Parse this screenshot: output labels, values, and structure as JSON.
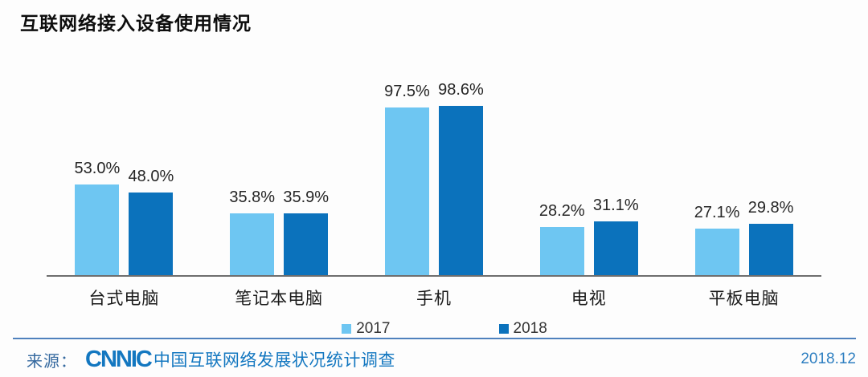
{
  "title": "互联网络接入设备使用情况",
  "chart_data": {
    "type": "bar",
    "title": "互联网络接入设备使用情况",
    "categories": [
      "台式电脑",
      "笔记本电脑",
      "手机",
      "电视",
      "平板电脑"
    ],
    "series": [
      {
        "name": "2017",
        "color": "#6EC6F2",
        "values": [
          53.0,
          35.8,
          97.5,
          28.2,
          27.1
        ]
      },
      {
        "name": "2018",
        "color": "#0B72BC",
        "values": [
          48.0,
          35.9,
          98.6,
          31.1,
          29.8
        ]
      }
    ],
    "value_suffix": "%",
    "value_label_decimals": 1,
    "ylim": [
      0,
      100
    ],
    "grid": false,
    "legend_position": "bottom",
    "axis_color": "#6e6e6e"
  },
  "footer": {
    "source_label": "来源：",
    "logo_text": "CNNIC",
    "source_text": "中国互联网络发展状况统计调查",
    "date": "2018.12",
    "separator_color": "#4f81bd",
    "accent_color": "#1377c0"
  }
}
